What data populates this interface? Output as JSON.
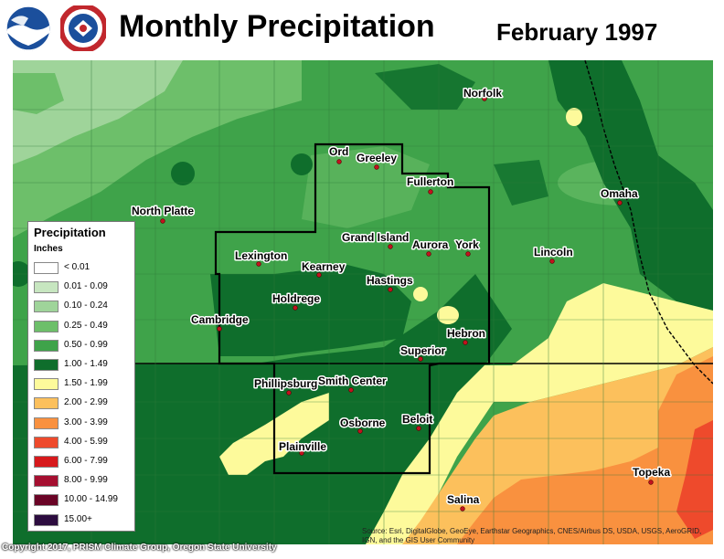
{
  "header": {
    "title": "Monthly Precipitation",
    "date": "February 1997",
    "logos": [
      "noaa-logo",
      "national-weather-service-logo"
    ],
    "nws_ring_text": "NATIONAL WEATHER SERVICE"
  },
  "legend": {
    "title": "Precipitation",
    "units": "Inches",
    "items": [
      {
        "label": "< 0.01",
        "color": "#ffffff"
      },
      {
        "label": "0.01 - 0.09",
        "color": "#c7e6c0"
      },
      {
        "label": "0.10 - 0.24",
        "color": "#9fd49a"
      },
      {
        "label": "0.25 - 0.49",
        "color": "#6dbf6a"
      },
      {
        "label": "0.50 - 0.99",
        "color": "#3fa34a"
      },
      {
        "label": "1.00 - 1.49",
        "color": "#0f6e2c"
      },
      {
        "label": "1.50 - 1.99",
        "color": "#fdfa9b"
      },
      {
        "label": "2.00 - 2.99",
        "color": "#fcc05c"
      },
      {
        "label": "3.00 - 3.99",
        "color": "#f9913f"
      },
      {
        "label": "4.00 - 5.99",
        "color": "#ee4a2c"
      },
      {
        "label": "6.00 - 7.99",
        "color": "#d7191c"
      },
      {
        "label": "8.00 - 9.99",
        "color": "#a50f30"
      },
      {
        "label": "10.00 - 14.99",
        "color": "#6a0426"
      },
      {
        "label": "15.00+",
        "color": "#2c0c3f"
      }
    ]
  },
  "cities": [
    "Norfolk",
    "Ord",
    "Greeley",
    "Fullerton",
    "Omaha",
    "North Platte",
    "Grand Island",
    "Aurora",
    "York",
    "Lincoln",
    "Lexington",
    "Kearney",
    "Hastings",
    "Holdrege",
    "Cambridge",
    "Hebron",
    "Superior",
    "Phillipsburg",
    "Smith Center",
    "Osborne",
    "Beloit",
    "Plainville",
    "Topeka",
    "Salina"
  ],
  "footer": {
    "copyright": "Copyright 2017, PRISM Climate Group, Oregon State University",
    "source": "Source: Esri, DigitalGlobe, GeoEye, Earthstar Geographics, CNES/Airbus DS, USDA, USGS, AeroGRID, IGN, and the GIS User Community"
  }
}
